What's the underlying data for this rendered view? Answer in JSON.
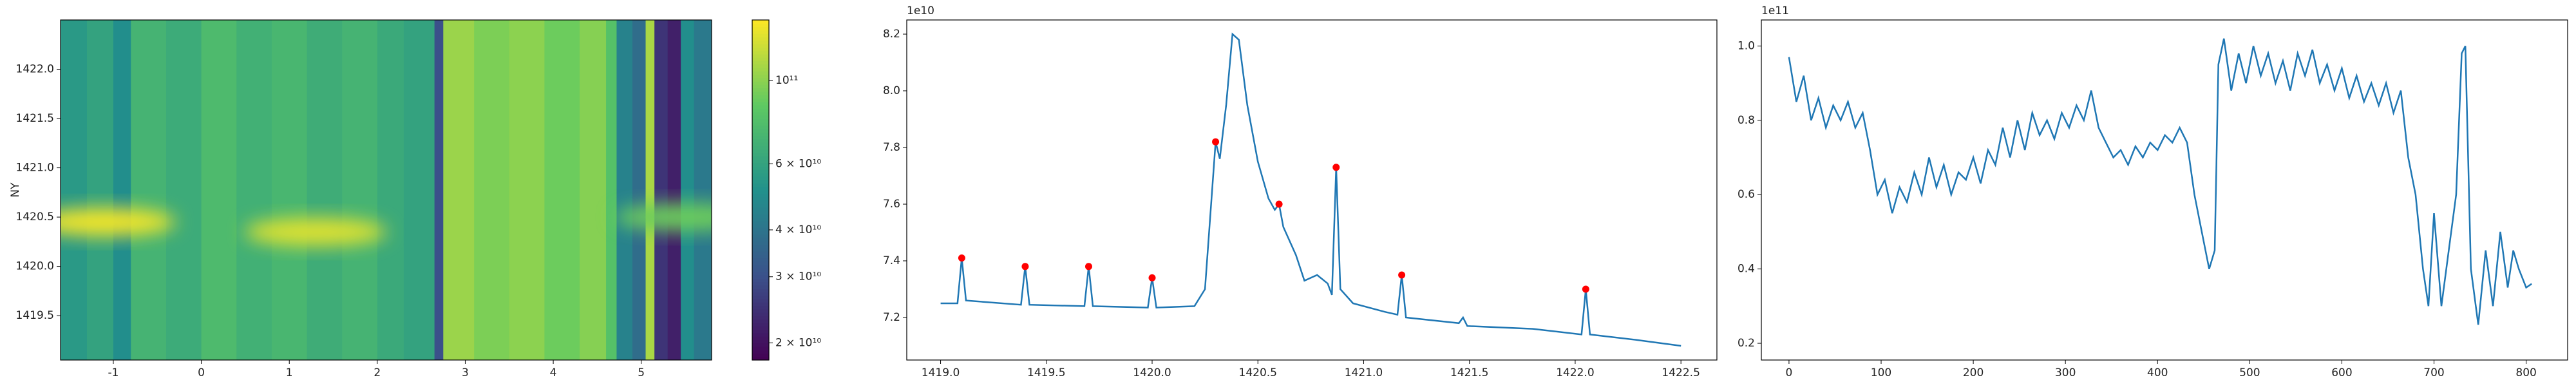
{
  "chart_data": [
    {
      "type": "heatmap",
      "ylabel": "NY",
      "colormap": "viridis",
      "log_scale": true,
      "x_edges": [
        -1.6,
        -1.3,
        -1.0,
        -0.8,
        -0.4,
        0,
        0.4,
        0.8,
        1.2,
        1.6,
        2.0,
        2.3,
        2.65,
        2.75,
        3.1,
        3.5,
        3.9,
        4.3,
        4.6,
        4.72,
        4.9,
        5.05,
        5.15,
        5.3,
        5.45,
        5.6,
        5.8
      ],
      "values": [
        55000000000.0,
        60000000000.0,
        50000000000.0,
        70000000000.0,
        65000000000.0,
        75000000000.0,
        68000000000.0,
        72000000000.0,
        66000000000.0,
        70000000000.0,
        64000000000.0,
        60000000000.0,
        30000000000.0,
        105000000000.0,
        95000000000.0,
        100000000000.0,
        90000000000.0,
        98000000000.0,
        80000000000.0,
        45000000000.0,
        38000000000.0,
        110000000000.0,
        25000000000.0,
        22000000000.0,
        50000000000.0,
        42000000000.0
      ],
      "hotspots": {
        "x": [
          -1.1,
          1.3,
          5.5
        ],
        "y": [
          1420.45,
          1420.35,
          1420.5
        ],
        "values": [
          140000000000.0,
          130000000000.0,
          90000000000.0
        ]
      },
      "xlim": [
        -1.6,
        5.8
      ],
      "xticks": [
        -1,
        0,
        1,
        2,
        3,
        4,
        5
      ],
      "ylim": [
        1419.05,
        1422.5
      ],
      "yticks": [
        {
          "value": 1419.5,
          "label": "1419.5"
        },
        {
          "value": 1420,
          "label": "1420.0"
        },
        {
          "value": 1420.5,
          "label": "1420.5"
        },
        {
          "value": 1421,
          "label": "1421.0"
        },
        {
          "value": 1421.5,
          "label": "1421.5"
        },
        {
          "value": 1422,
          "label": "1422.0"
        }
      ],
      "clim": [
        18000000000.0,
        145000000000.0
      ],
      "cticks": [
        {
          "value": 20000000000.0,
          "label": "2 × 10¹⁰"
        },
        {
          "value": 30000000000.0,
          "label": "3 × 10¹⁰"
        },
        {
          "value": 40000000000.0,
          "label": "4 × 10¹⁰"
        },
        {
          "value": 60000000000.0,
          "label": "6 × 10¹⁰"
        },
        {
          "value": 100000000000.0,
          "label": "10¹¹"
        }
      ]
    },
    {
      "type": "line",
      "color": "#1f77b4",
      "offset_text": "1e10",
      "x": [
        1419.0,
        1419.08,
        1419.1,
        1419.12,
        1419.38,
        1419.4,
        1419.42,
        1419.68,
        1419.7,
        1419.72,
        1419.98,
        1420.0,
        1420.02,
        1420.2,
        1420.25,
        1420.3,
        1420.32,
        1420.35,
        1420.38,
        1420.41,
        1420.45,
        1420.5,
        1420.55,
        1420.58,
        1420.6,
        1420.62,
        1420.68,
        1420.72,
        1420.78,
        1420.83,
        1420.85,
        1420.87,
        1420.89,
        1420.95,
        1421.1,
        1421.16,
        1421.18,
        1421.2,
        1421.45,
        1421.47,
        1421.49,
        1421.8,
        1422.03,
        1422.05,
        1422.07,
        1422.3,
        1422.5
      ],
      "values": [
        7.25,
        7.25,
        7.41,
        7.26,
        7.245,
        7.38,
        7.245,
        7.24,
        7.38,
        7.24,
        7.235,
        7.34,
        7.235,
        7.24,
        7.3,
        7.82,
        7.76,
        7.95,
        8.2,
        8.18,
        7.95,
        7.75,
        7.62,
        7.58,
        7.6,
        7.52,
        7.42,
        7.33,
        7.35,
        7.32,
        7.28,
        7.73,
        7.3,
        7.25,
        7.22,
        7.21,
        7.35,
        7.2,
        7.18,
        7.2,
        7.17,
        7.16,
        7.14,
        7.3,
        7.14,
        7.12,
        7.1
      ],
      "peaks": {
        "color": "red",
        "x": [
          1419.1,
          1419.4,
          1419.7,
          1420.0,
          1420.3,
          1420.6,
          1420.87,
          1421.18,
          1422.05
        ],
        "values": [
          7.41,
          7.38,
          7.38,
          7.34,
          7.82,
          7.6,
          7.73,
          7.35,
          7.3
        ]
      },
      "xlim": [
        1418.84,
        1422.67
      ],
      "xticks": [
        {
          "value": 1419,
          "label": "1419.0"
        },
        1419.5,
        {
          "value": 1420,
          "label": "1420.0"
        },
        1420.5,
        {
          "value": 1421,
          "label": "1421.0"
        },
        1421.5,
        {
          "value": 1422,
          "label": "1422.0"
        },
        1422.5
      ],
      "ylim": [
        7.05,
        8.25
      ],
      "yticks": [
        7.2,
        7.4,
        7.6,
        7.8,
        {
          "value": 8,
          "label": "8.0"
        },
        8.2
      ]
    },
    {
      "type": "line",
      "color": "#1f77b4",
      "offset_text": "1e11",
      "x": [
        0,
        8,
        16,
        24,
        32,
        40,
        48,
        56,
        64,
        72,
        80,
        88,
        96,
        104,
        112,
        120,
        128,
        136,
        144,
        152,
        160,
        168,
        176,
        184,
        192,
        200,
        208,
        216,
        224,
        232,
        240,
        248,
        256,
        264,
        272,
        280,
        288,
        296,
        304,
        312,
        320,
        328,
        336,
        344,
        352,
        360,
        368,
        376,
        384,
        392,
        400,
        408,
        416,
        424,
        432,
        440,
        448,
        456,
        462,
        466,
        472,
        480,
        488,
        496,
        504,
        512,
        520,
        528,
        536,
        544,
        552,
        560,
        568,
        576,
        584,
        592,
        600,
        608,
        616,
        624,
        632,
        640,
        648,
        656,
        664,
        672,
        680,
        688,
        694,
        700,
        708,
        716,
        724,
        730,
        734,
        740,
        748,
        756,
        764,
        772,
        780,
        786,
        792,
        800,
        806
      ],
      "values": [
        0.97,
        0.85,
        0.92,
        0.8,
        0.86,
        0.78,
        0.84,
        0.8,
        0.85,
        0.78,
        0.82,
        0.72,
        0.6,
        0.64,
        0.55,
        0.62,
        0.58,
        0.66,
        0.6,
        0.7,
        0.62,
        0.68,
        0.6,
        0.66,
        0.64,
        0.7,
        0.63,
        0.72,
        0.68,
        0.78,
        0.7,
        0.8,
        0.72,
        0.82,
        0.76,
        0.8,
        0.75,
        0.82,
        0.78,
        0.84,
        0.8,
        0.88,
        0.78,
        0.74,
        0.7,
        0.72,
        0.68,
        0.73,
        0.7,
        0.74,
        0.72,
        0.76,
        0.74,
        0.78,
        0.74,
        0.6,
        0.5,
        0.4,
        0.45,
        0.95,
        1.02,
        0.88,
        0.98,
        0.9,
        1.0,
        0.92,
        0.98,
        0.9,
        0.96,
        0.88,
        0.98,
        0.92,
        0.99,
        0.9,
        0.95,
        0.88,
        0.94,
        0.86,
        0.92,
        0.85,
        0.9,
        0.84,
        0.9,
        0.82,
        0.88,
        0.7,
        0.6,
        0.4,
        0.3,
        0.55,
        0.3,
        0.45,
        0.6,
        0.98,
        1.0,
        0.4,
        0.25,
        0.45,
        0.3,
        0.5,
        0.35,
        0.45,
        0.4,
        0.35,
        0.36
      ],
      "xlim": [
        -30,
        845
      ],
      "xticks": [
        0,
        100,
        200,
        300,
        400,
        500,
        600,
        700,
        800
      ],
      "ylim": [
        0.155,
        1.07
      ],
      "yticks": [
        0.2,
        0.4,
        0.6,
        0.8,
        {
          "value": 1,
          "label": "1.0"
        }
      ]
    }
  ]
}
